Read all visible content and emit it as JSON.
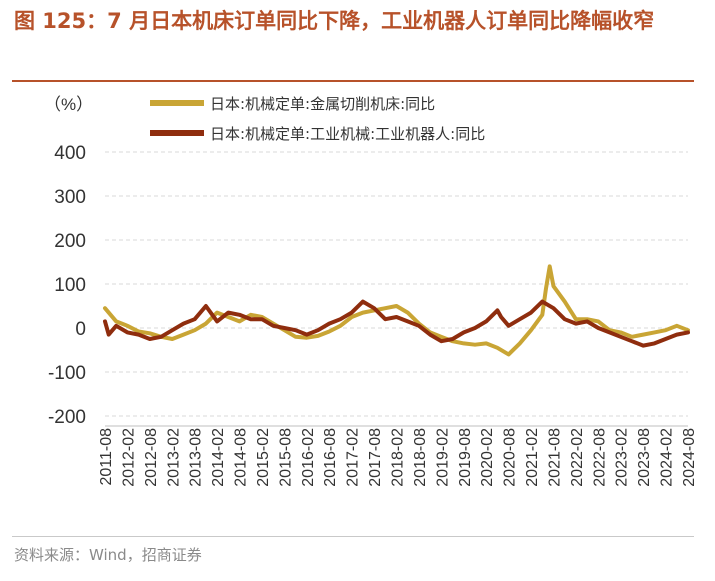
{
  "header": {
    "title": "图 125：7 月日本机床订单同比下降，工业机器人订单同比降幅收窄"
  },
  "footer": {
    "source": "资料来源：Wind，招商证券"
  },
  "colors": {
    "title": "#b7522a",
    "rule": "#b7522a",
    "gold": "#c9a535",
    "brown": "#8f2d0e",
    "grid": "#d9d9d9"
  },
  "chart_data": {
    "type": "line",
    "title": "7 月日本机床订单同比下降，工业机器人订单同比降幅收窄",
    "ylabel": "（%）",
    "xlabel": "",
    "ylim": [
      -200,
      400
    ],
    "yticks": [
      "400",
      "300",
      "200",
      "100",
      "0",
      "-100",
      "-200"
    ],
    "ytick_values": [
      400,
      300,
      200,
      100,
      0,
      -100,
      -200
    ],
    "x_start": "2011-08",
    "x_end": "2024-08",
    "xtick_labels": [
      "2011-08",
      "2012-02",
      "2012-08",
      "2013-02",
      "2013-08",
      "2014-02",
      "2014-08",
      "2015-02",
      "2015-08",
      "2016-02",
      "2016-08",
      "2017-02",
      "2017-08",
      "2018-02",
      "2018-08",
      "2019-02",
      "2019-08",
      "2020-02",
      "2020-08",
      "2021-02",
      "2021-08",
      "2022-02",
      "2022-08",
      "2023-02",
      "2023-08",
      "2024-02",
      "2024-08"
    ],
    "grid": true,
    "legend_position": "top-right",
    "series": [
      {
        "name": "日本:机械定单:金属切削机床:同比",
        "color": "#c9a535",
        "points": [
          [
            "2011-08",
            45
          ],
          [
            "2011-11",
            15
          ],
          [
            "2012-02",
            5
          ],
          [
            "2012-05",
            -8
          ],
          [
            "2012-08",
            -12
          ],
          [
            "2012-11",
            -20
          ],
          [
            "2013-02",
            -25
          ],
          [
            "2013-05",
            -15
          ],
          [
            "2013-08",
            -5
          ],
          [
            "2013-11",
            10
          ],
          [
            "2014-02",
            35
          ],
          [
            "2014-05",
            25
          ],
          [
            "2014-08",
            15
          ],
          [
            "2014-11",
            30
          ],
          [
            "2015-02",
            25
          ],
          [
            "2015-05",
            10
          ],
          [
            "2015-08",
            -5
          ],
          [
            "2015-11",
            -20
          ],
          [
            "2016-02",
            -22
          ],
          [
            "2016-05",
            -18
          ],
          [
            "2016-08",
            -8
          ],
          [
            "2016-11",
            5
          ],
          [
            "2017-02",
            25
          ],
          [
            "2017-05",
            35
          ],
          [
            "2017-08",
            40
          ],
          [
            "2017-11",
            45
          ],
          [
            "2018-02",
            50
          ],
          [
            "2018-05",
            35
          ],
          [
            "2018-08",
            10
          ],
          [
            "2018-11",
            -10
          ],
          [
            "2019-02",
            -20
          ],
          [
            "2019-05",
            -30
          ],
          [
            "2019-08",
            -35
          ],
          [
            "2019-11",
            -38
          ],
          [
            "2020-02",
            -35
          ],
          [
            "2020-05",
            -45
          ],
          [
            "2020-08",
            -60
          ],
          [
            "2020-11",
            -35
          ],
          [
            "2021-02",
            -5
          ],
          [
            "2021-05",
            30
          ],
          [
            "2021-06",
            90
          ],
          [
            "2021-07",
            140
          ],
          [
            "2021-08",
            95
          ],
          [
            "2021-11",
            60
          ],
          [
            "2022-02",
            20
          ],
          [
            "2022-05",
            20
          ],
          [
            "2022-08",
            15
          ],
          [
            "2022-11",
            -5
          ],
          [
            "2023-02",
            -10
          ],
          [
            "2023-05",
            -20
          ],
          [
            "2023-08",
            -15
          ],
          [
            "2023-11",
            -10
          ],
          [
            "2024-02",
            -5
          ],
          [
            "2024-05",
            5
          ],
          [
            "2024-08",
            -5
          ]
        ]
      },
      {
        "name": "日本:机械定单:工业机械:工业机器人:同比",
        "color": "#8f2d0e",
        "points": [
          [
            "2011-08",
            15
          ],
          [
            "2011-09",
            -15
          ],
          [
            "2011-11",
            5
          ],
          [
            "2012-02",
            -10
          ],
          [
            "2012-05",
            -15
          ],
          [
            "2012-08",
            -25
          ],
          [
            "2012-11",
            -20
          ],
          [
            "2013-02",
            -5
          ],
          [
            "2013-05",
            10
          ],
          [
            "2013-08",
            20
          ],
          [
            "2013-11",
            50
          ],
          [
            "2014-02",
            15
          ],
          [
            "2014-05",
            35
          ],
          [
            "2014-08",
            30
          ],
          [
            "2014-11",
            20
          ],
          [
            "2015-02",
            20
          ],
          [
            "2015-05",
            5
          ],
          [
            "2015-08",
            0
          ],
          [
            "2015-11",
            -5
          ],
          [
            "2016-02",
            -15
          ],
          [
            "2016-05",
            -5
          ],
          [
            "2016-08",
            10
          ],
          [
            "2016-11",
            20
          ],
          [
            "2017-02",
            35
          ],
          [
            "2017-05",
            60
          ],
          [
            "2017-08",
            45
          ],
          [
            "2017-11",
            20
          ],
          [
            "2018-02",
            25
          ],
          [
            "2018-05",
            15
          ],
          [
            "2018-08",
            5
          ],
          [
            "2018-11",
            -15
          ],
          [
            "2019-02",
            -30
          ],
          [
            "2019-05",
            -25
          ],
          [
            "2019-08",
            -10
          ],
          [
            "2019-11",
            0
          ],
          [
            "2020-02",
            15
          ],
          [
            "2020-05",
            40
          ],
          [
            "2020-06",
            25
          ],
          [
            "2020-08",
            5
          ],
          [
            "2020-11",
            20
          ],
          [
            "2021-02",
            35
          ],
          [
            "2021-05",
            60
          ],
          [
            "2021-08",
            45
          ],
          [
            "2021-11",
            20
          ],
          [
            "2022-02",
            10
          ],
          [
            "2022-05",
            15
          ],
          [
            "2022-08",
            0
          ],
          [
            "2022-11",
            -10
          ],
          [
            "2023-02",
            -20
          ],
          [
            "2023-05",
            -30
          ],
          [
            "2023-08",
            -40
          ],
          [
            "2023-11",
            -35
          ],
          [
            "2024-02",
            -25
          ],
          [
            "2024-05",
            -15
          ],
          [
            "2024-08",
            -10
          ]
        ]
      }
    ]
  }
}
